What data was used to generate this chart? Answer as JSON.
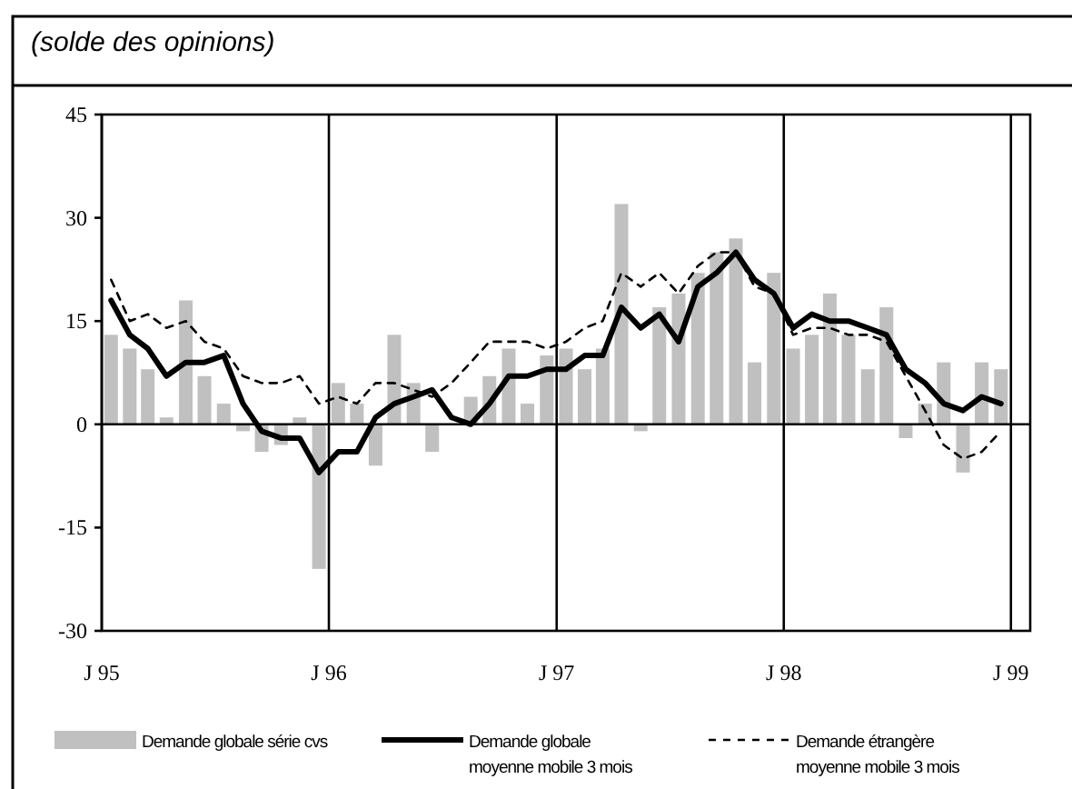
{
  "chart_data": {
    "type": "bar",
    "title": "(solde des opinions)",
    "x": [
      "1995-01-16",
      "1995-02-15",
      "1995-03-16",
      "1995-04-15",
      "1995-05-16",
      "1995-06-15",
      "1995-07-16",
      "1995-08-16",
      "1995-09-15",
      "1995-10-16",
      "1995-11-15",
      "1995-12-16",
      "1996-01-16",
      "1996-02-15",
      "1996-03-16",
      "1996-04-15",
      "1996-05-16",
      "1996-06-15",
      "1996-07-16",
      "1996-08-16",
      "1996-09-15",
      "1996-10-16",
      "1996-11-15",
      "1996-12-16",
      "1997-01-16",
      "1997-02-15",
      "1997-03-16",
      "1997-04-15",
      "1997-05-16",
      "1997-06-15",
      "1997-07-16",
      "1997-08-16",
      "1997-09-15",
      "1997-10-16",
      "1997-11-15",
      "1997-12-16",
      "1998-01-16",
      "1998-02-15",
      "1998-03-16",
      "1998-04-15",
      "1998-05-16",
      "1998-06-15",
      "1998-07-16",
      "1998-08-16",
      "1998-09-15",
      "1998-10-16",
      "1998-11-15",
      "1998-12-16"
    ],
    "series": [
      {
        "name": "Demande globale série cvs",
        "color": "#c0c0c0",
        "values": [
          13,
          11,
          8,
          1,
          18,
          7,
          3,
          -1,
          -4,
          -3,
          1,
          -21,
          6,
          3,
          -6,
          13,
          6,
          -4,
          0,
          4,
          7,
          11,
          3,
          10,
          11,
          8,
          11,
          32,
          -1,
          17,
          19,
          22,
          25,
          27,
          9,
          22,
          11,
          13,
          19,
          13,
          8,
          17,
          -2,
          3,
          9,
          -7,
          9,
          8
        ]
      },
      {
        "name": "Demande globale\nmoyenne mobile 3 mois",
        "type": "line",
        "color": "#000000",
        "line_style": "solid",
        "values": [
          18,
          13,
          11,
          7,
          9,
          9,
          10,
          3,
          -1,
          -2,
          -2,
          -7,
          -4,
          -4,
          1,
          3,
          4,
          5,
          1,
          0,
          3,
          7,
          7,
          8,
          8,
          10,
          10,
          17,
          14,
          16,
          12,
          20,
          22,
          25,
          21,
          19,
          14,
          16,
          15,
          15,
          14,
          13,
          8,
          6,
          3,
          2,
          4,
          3
        ]
      },
      {
        "name": "Demande étrangère\nmoyenne mobile 3 mois",
        "type": "line",
        "color": "#000000",
        "line_style": "dashed",
        "values": [
          21,
          15,
          16,
          14,
          15,
          12,
          11,
          7,
          6,
          6,
          7,
          3,
          4,
          3,
          6,
          6,
          5,
          4,
          6,
          9,
          12,
          12,
          12,
          11,
          12,
          14,
          15,
          22,
          20,
          22,
          19,
          23,
          25,
          25,
          20,
          19,
          13,
          14,
          14,
          13,
          13,
          12,
          7,
          2,
          -3,
          -5,
          -4,
          -1
        ]
      }
    ],
    "xlim": [
      "1995-01-01",
      "1999-02-01"
    ],
    "xticks": [
      {
        "value": "1995-01-01",
        "label": "J 95"
      },
      {
        "value": "1996-01-01",
        "label": "J 96"
      },
      {
        "value": "1997-01-01",
        "label": "J 97"
      },
      {
        "value": "1998-01-01",
        "label": "J 98"
      },
      {
        "value": "1999-01-01",
        "label": "J 99"
      }
    ],
    "ylim": [
      -30,
      45
    ],
    "yticks": [
      -30,
      -15,
      0,
      15,
      30,
      45
    ],
    "ref_lines": [
      {
        "axis": "y",
        "value": 0,
        "color": "#000000"
      }
    ],
    "grid": "x",
    "legend": "bottom"
  }
}
